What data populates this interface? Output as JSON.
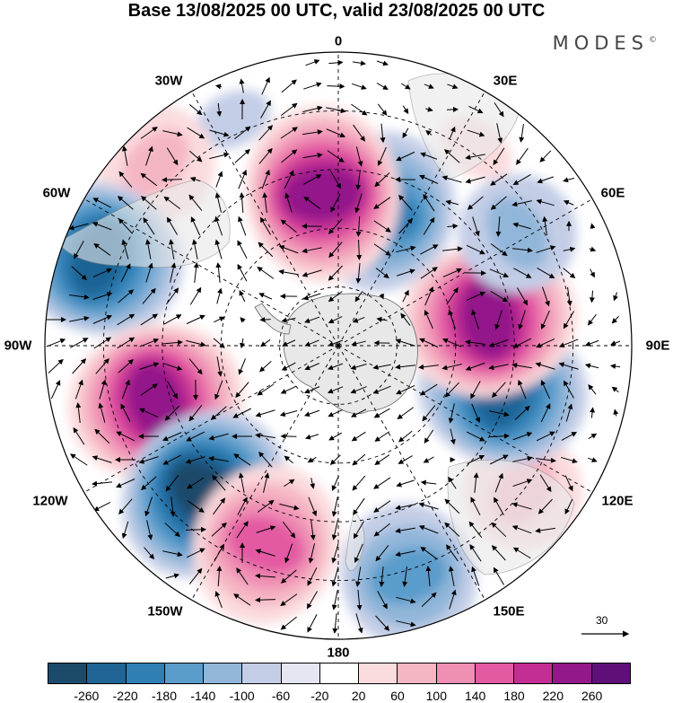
{
  "title": "Base 13/08/2025 00 UTC, valid 23/08/2025 00 UTC",
  "brand": "MODES",
  "brand_mark": "©",
  "longitude_labels": {
    "lon_0": "0",
    "lon_30e": "30E",
    "lon_60e": "60E",
    "lon_90e": "90E",
    "lon_120e": "120E",
    "lon_150e": "150E",
    "lon_180": "180",
    "lon_150w": "150W",
    "lon_120w": "120W",
    "lon_90w": "90W",
    "lon_60w": "60W",
    "lon_30w": "30W"
  },
  "reference_vector": "30",
  "colorbar": {
    "colors": [
      "#1c4a6b",
      "#1f6495",
      "#2f7fb5",
      "#5a9ccb",
      "#91b6d9",
      "#c3cde6",
      "#e6e6f3",
      "#ffffff",
      "#fbdcde",
      "#f5b6c4",
      "#ef8fb4",
      "#e35aa3",
      "#c22e93",
      "#93198a",
      "#5e0f78"
    ],
    "ticks": [
      "-260",
      "-220",
      "-180",
      "-140",
      "-100",
      "-60",
      "-20",
      "20",
      "60",
      "100",
      "140",
      "180",
      "220",
      "260"
    ]
  },
  "anomaly_centers": [
    {
      "value": 260,
      "bearing_deg": 354,
      "distance": 0.52
    },
    {
      "value": -180,
      "bearing_deg": 18,
      "distance": 0.48
    },
    {
      "value": 60,
      "bearing_deg": 35,
      "distance": 0.82
    },
    {
      "value": -100,
      "bearing_deg": 58,
      "distance": 0.72
    },
    {
      "value": 260,
      "bearing_deg": 80,
      "distance": 0.52
    },
    {
      "value": -220,
      "bearing_deg": 105,
      "distance": 0.58
    },
    {
      "value": 100,
      "bearing_deg": 128,
      "distance": 0.8
    },
    {
      "value": -140,
      "bearing_deg": 163,
      "distance": 0.82
    },
    {
      "value": 180,
      "bearing_deg": 200,
      "distance": 0.72
    },
    {
      "value": -260,
      "bearing_deg": 222,
      "distance": 0.68
    },
    {
      "value": 260,
      "bearing_deg": 253,
      "distance": 0.65
    },
    {
      "value": -220,
      "bearing_deg": 290,
      "distance": 0.87
    },
    {
      "value": 100,
      "bearing_deg": 315,
      "distance": 0.88
    },
    {
      "value": -60,
      "bearing_deg": 335,
      "distance": 0.85
    }
  ],
  "colors": {
    "land": "#e8e8e8",
    "grid": "#000000",
    "frame": "#000000"
  }
}
